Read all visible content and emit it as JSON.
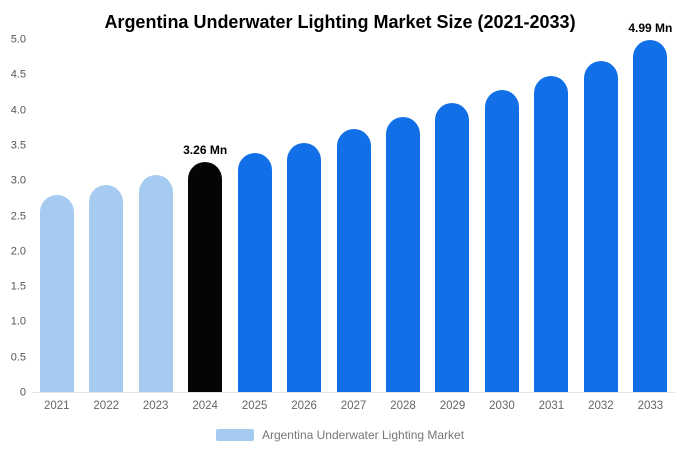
{
  "title": "Argentina Underwater Lighting Market Size (2021-2033)",
  "legend": {
    "label": "Argentina Underwater Lighting Market",
    "swatch_color": "#a5cbf1"
  },
  "colors": {
    "light_blue": "#a5cbf1",
    "primary_blue": "#1170e8",
    "highlight_black": "#050505"
  },
  "chart_data": {
    "type": "bar",
    "title": "Argentina Underwater Lighting Market Size (2021-2033)",
    "xlabel": "",
    "ylabel": "",
    "ylim": [
      0,
      5
    ],
    "grid": false,
    "legend_position": "bottom",
    "categories": [
      "2021",
      "2022",
      "2023",
      "2024",
      "2025",
      "2026",
      "2027",
      "2028",
      "2029",
      "2030",
      "2031",
      "2032",
      "2033"
    ],
    "values": [
      2.79,
      2.93,
      3.08,
      3.26,
      3.38,
      3.53,
      3.72,
      3.89,
      4.09,
      4.28,
      4.48,
      4.69,
      4.99
    ],
    "unit": "Mn",
    "bar_colors": [
      "#a5cbf1",
      "#a5cbf1",
      "#a5cbf1",
      "#050505",
      "#1170e8",
      "#1170e8",
      "#1170e8",
      "#1170e8",
      "#1170e8",
      "#1170e8",
      "#1170e8",
      "#1170e8",
      "#1170e8"
    ],
    "annotations": [
      {
        "index": 3,
        "text": "3.26 Mn"
      },
      {
        "index": 12,
        "text": "4.99 Mn"
      }
    ],
    "yticks": [
      0,
      0.5,
      1,
      1.5,
      2,
      2.5,
      3,
      3.5,
      4,
      4.5,
      5
    ],
    "ytick_labels": [
      "0",
      "0.5",
      "1.0",
      "1.5",
      "2.0",
      "2.5",
      "3.0",
      "3.5",
      "4.0",
      "4.5",
      "5.0"
    ]
  }
}
